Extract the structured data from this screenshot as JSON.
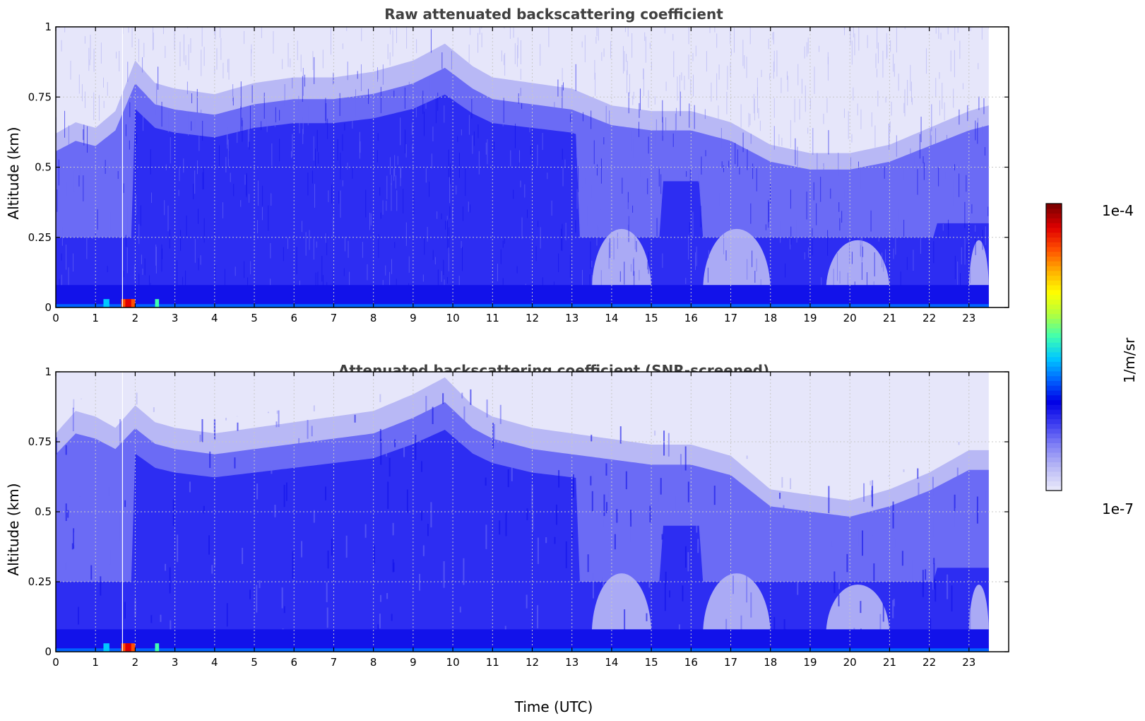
{
  "colors": {
    "background": "#e6e6fa",
    "light": "#b8b8f5",
    "medium": "#6b6bf5",
    "strong": "#2d2df2",
    "deep": "#1212ea",
    "grid": "#c8c8c8",
    "title": "#404040",
    "colormap": [
      "#e6e6fa",
      "#b8b8f5",
      "#8080f5",
      "#3c3cf0",
      "#0000e6",
      "#0064ff",
      "#00c8ff",
      "#40ffb0",
      "#b0ff40",
      "#ffff00",
      "#ffb000",
      "#ff5000",
      "#e00000",
      "#800000"
    ]
  },
  "chart_data": [
    {
      "type": "heatmap",
      "title": "Raw attenuated backscattering coefficient",
      "xlabel": "",
      "ylabel": "Altitude (km)",
      "xlim": [
        0,
        24
      ],
      "ylim": [
        0,
        1
      ],
      "x_ticks": [
        0,
        1,
        2,
        3,
        4,
        5,
        6,
        7,
        8,
        9,
        10,
        11,
        12,
        13,
        14,
        15,
        16,
        17,
        18,
        19,
        20,
        21,
        22,
        23
      ],
      "x_tick_labels": [
        "0",
        "1",
        "2",
        "3",
        "4",
        "5",
        "6",
        "7",
        "8",
        "9",
        "10",
        "11",
        "12",
        "13",
        "14",
        "15",
        "16",
        "17",
        "18",
        "19",
        "20",
        "21",
        "22",
        "23"
      ],
      "y_ticks": [
        0,
        0.25,
        0.5,
        0.75,
        1
      ],
      "y_tick_labels": [
        "0",
        "0.25",
        "0.5",
        "0.75",
        "1"
      ],
      "grid": true,
      "data_end_hour": 23.5,
      "boundary_layer_top_km": [
        [
          0,
          0.62
        ],
        [
          0.5,
          0.66
        ],
        [
          1,
          0.64
        ],
        [
          1.5,
          0.7
        ],
        [
          2,
          0.88
        ],
        [
          2.5,
          0.8
        ],
        [
          3,
          0.78
        ],
        [
          4,
          0.76
        ],
        [
          5,
          0.8
        ],
        [
          6,
          0.82
        ],
        [
          7,
          0.82
        ],
        [
          8,
          0.84
        ],
        [
          9,
          0.88
        ],
        [
          9.8,
          0.94
        ],
        [
          10.5,
          0.86
        ],
        [
          11,
          0.82
        ],
        [
          12,
          0.8
        ],
        [
          13,
          0.78
        ],
        [
          14,
          0.72
        ],
        [
          15,
          0.7
        ],
        [
          16,
          0.7
        ],
        [
          17,
          0.66
        ],
        [
          18,
          0.58
        ],
        [
          19,
          0.55
        ],
        [
          20,
          0.55
        ],
        [
          21,
          0.58
        ],
        [
          22,
          0.64
        ],
        [
          23,
          0.7
        ],
        [
          23.5,
          0.72
        ]
      ],
      "noise_top_km": 1.0,
      "aerosol_layer_km": [
        0,
        0.08
      ]
    },
    {
      "type": "heatmap",
      "title": "Attenuated backscattering coefficient (SNR-screened)",
      "xlabel": "Time (UTC)",
      "ylabel": "Altitude (km)",
      "xlim": [
        0,
        24
      ],
      "ylim": [
        0,
        1
      ],
      "x_ticks": [
        0,
        1,
        2,
        3,
        4,
        5,
        6,
        7,
        8,
        9,
        10,
        11,
        12,
        13,
        14,
        15,
        16,
        17,
        18,
        19,
        20,
        21,
        22,
        23
      ],
      "x_tick_labels": [
        "0",
        "1",
        "2",
        "3",
        "4",
        "5",
        "6",
        "7",
        "8",
        "9",
        "10",
        "11",
        "12",
        "13",
        "14",
        "15",
        "16",
        "17",
        "18",
        "19",
        "20",
        "21",
        "22",
        "23"
      ],
      "y_ticks": [
        0,
        0.25,
        0.5,
        0.75,
        1
      ],
      "y_tick_labels": [
        "0",
        "0.25",
        "0.5",
        "0.75",
        "1"
      ],
      "grid": true,
      "data_end_hour": 23.5,
      "boundary_layer_top_km": [
        [
          0,
          0.78
        ],
        [
          0.5,
          0.86
        ],
        [
          1,
          0.84
        ],
        [
          1.5,
          0.8
        ],
        [
          2,
          0.88
        ],
        [
          2.5,
          0.82
        ],
        [
          3,
          0.8
        ],
        [
          4,
          0.78
        ],
        [
          5,
          0.8
        ],
        [
          6,
          0.82
        ],
        [
          7,
          0.84
        ],
        [
          8,
          0.86
        ],
        [
          9,
          0.92
        ],
        [
          9.8,
          0.98
        ],
        [
          10.5,
          0.88
        ],
        [
          11,
          0.84
        ],
        [
          12,
          0.8
        ],
        [
          13,
          0.78
        ],
        [
          14,
          0.76
        ],
        [
          15,
          0.74
        ],
        [
          16,
          0.74
        ],
        [
          17,
          0.7
        ],
        [
          18,
          0.58
        ],
        [
          19,
          0.56
        ],
        [
          20,
          0.54
        ],
        [
          21,
          0.58
        ],
        [
          22,
          0.64
        ],
        [
          23,
          0.72
        ],
        [
          23.5,
          0.72
        ]
      ],
      "aerosol_layer_km": [
        0,
        0.08
      ]
    }
  ],
  "colorbar": {
    "max_label": "1e-4",
    "min_label": "1e-7",
    "label": "1/m/sr"
  }
}
